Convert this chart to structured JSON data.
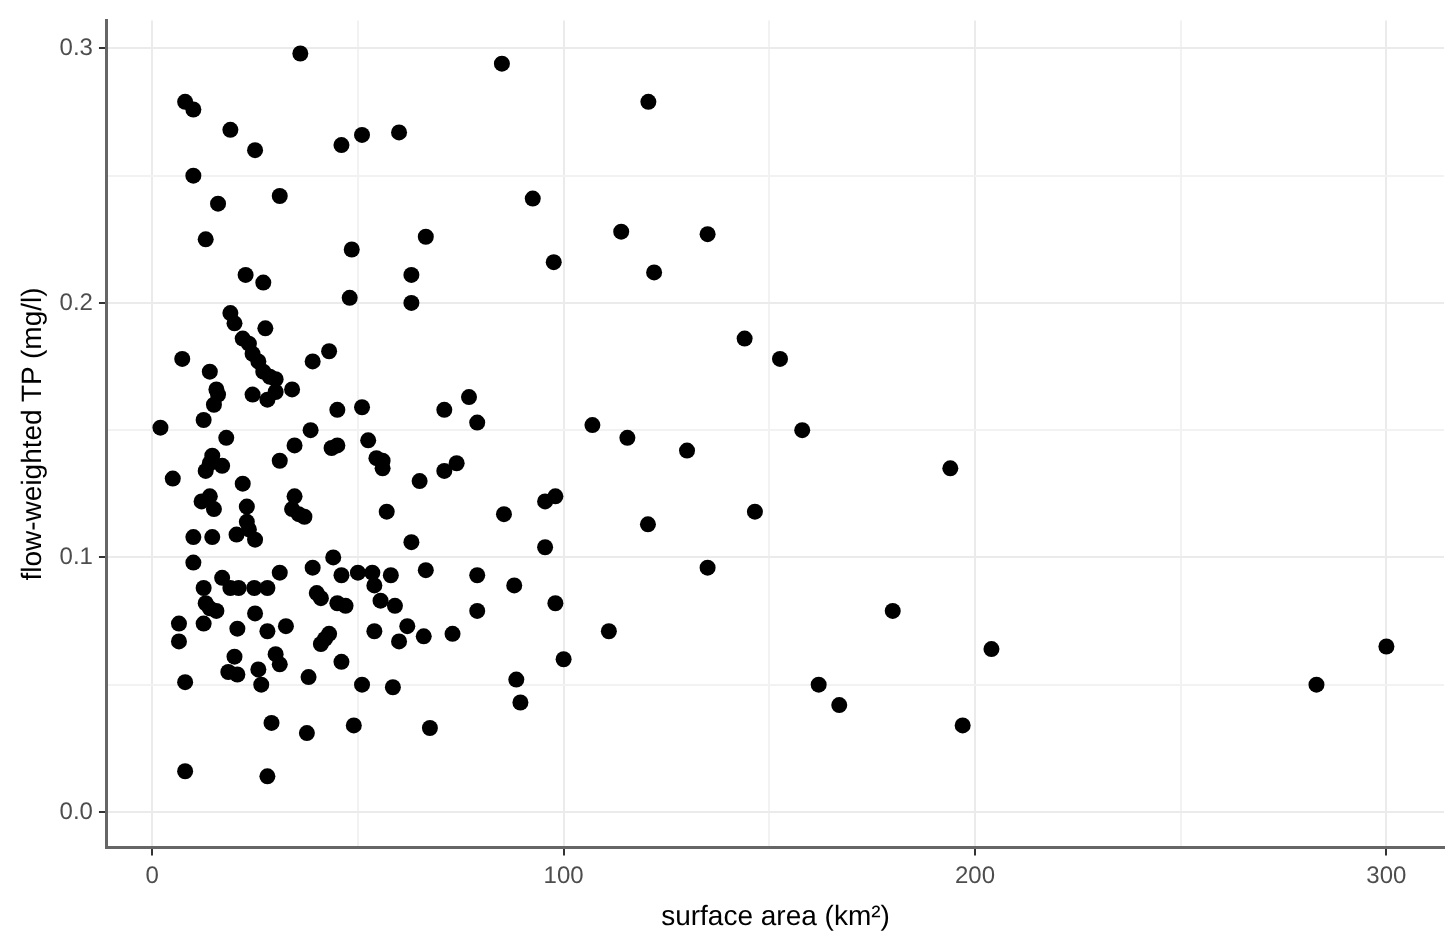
{
  "chart_data": {
    "type": "scatter",
    "xlabel": "surface area (km²)",
    "ylabel": "flow-weighted TP (mg/l)",
    "xlim": [
      -11,
      314
    ],
    "ylim": [
      -0.014,
      0.311
    ],
    "xticks": [
      0,
      {
        "value": 50,
        "label": null
      },
      100,
      {
        "value": 150,
        "label": null
      },
      200,
      {
        "value": 250,
        "label": null
      },
      300
    ],
    "yticks": [
      {
        "value": 0,
        "label": "0.0"
      },
      {
        "value": 0.05,
        "label": null
      },
      0.1,
      {
        "value": 0.15,
        "label": null
      },
      0.2,
      {
        "value": 0.25,
        "label": null
      },
      0.3
    ],
    "grid": true,
    "marker": "circle",
    "legend": false,
    "series": [
      {
        "color": "#000000",
        "x": [
          300,
          283,
          204,
          197,
          194,
          180,
          167,
          162,
          158,
          152.6,
          144,
          146.5,
          135,
          135,
          130,
          85,
          120.6,
          51,
          60,
          92.5,
          48.5,
          66.5,
          114,
          97.6,
          122,
          63,
          48,
          63,
          51,
          71,
          77,
          79,
          107,
          115.5,
          52.5,
          54.5,
          56,
          56,
          65,
          71,
          74,
          95.5,
          98,
          85.5,
          120.5,
          57,
          63,
          95.5,
          50,
          53.5,
          58,
          66.5,
          79,
          54,
          88,
          55.5,
          59,
          79,
          98,
          62,
          54,
          60,
          66,
          73,
          111,
          100,
          51,
          58.5,
          88.5,
          89.5,
          49,
          67.5,
          36,
          8,
          10,
          19,
          25,
          46,
          10,
          16,
          31,
          13,
          22.7,
          27,
          19,
          20,
          27.5,
          22,
          23.5,
          7.3,
          24.4,
          25.8,
          39,
          43,
          14,
          27,
          28.6,
          30,
          15.6,
          16,
          30,
          24.4,
          34,
          28,
          15,
          45,
          12.5,
          2,
          18,
          38.5,
          34.6,
          45,
          43.6,
          14.6,
          14,
          17,
          13,
          5,
          31,
          22,
          34.6,
          12,
          14,
          15,
          23,
          34,
          35.6,
          37,
          23,
          10,
          14.6,
          20.5,
          23.5,
          25,
          10,
          17,
          31,
          39,
          44,
          46,
          12.5,
          19,
          21,
          24.8,
          28,
          40,
          41,
          45,
          47,
          13,
          14,
          15.6,
          6.5,
          6.5,
          12.5,
          20.7,
          25,
          28,
          32.5,
          30,
          31,
          20,
          18.5,
          20.7,
          25.8,
          26.5,
          43,
          42,
          41,
          46,
          38,
          8,
          29,
          37.6,
          8,
          28
        ],
        "values": [
          0.065,
          0.05,
          0.064,
          0.034,
          0.135,
          0.079,
          0.042,
          0.05,
          0.15,
          0.178,
          0.186,
          0.118,
          0.096,
          0.227,
          0.142,
          0.294,
          0.279,
          0.266,
          0.267,
          0.241,
          0.221,
          0.226,
          0.228,
          0.216,
          0.212,
          0.211,
          0.202,
          0.2,
          0.159,
          0.158,
          0.163,
          0.153,
          0.152,
          0.147,
          0.146,
          0.139,
          0.138,
          0.135,
          0.13,
          0.134,
          0.137,
          0.122,
          0.124,
          0.117,
          0.113,
          0.118,
          0.106,
          0.104,
          0.094,
          0.094,
          0.093,
          0.095,
          0.093,
          0.089,
          0.089,
          0.083,
          0.081,
          0.079,
          0.082,
          0.073,
          0.071,
          0.067,
          0.069,
          0.07,
          0.071,
          0.06,
          0.05,
          0.049,
          0.052,
          0.043,
          0.034,
          0.033,
          0.298,
          0.279,
          0.276,
          0.268,
          0.26,
          0.262,
          0.25,
          0.239,
          0.242,
          0.225,
          0.211,
          0.208,
          0.196,
          0.192,
          0.19,
          0.186,
          0.184,
          0.178,
          0.18,
          0.177,
          0.177,
          0.181,
          0.173,
          0.173,
          0.171,
          0.17,
          0.166,
          0.164,
          0.165,
          0.164,
          0.166,
          0.162,
          0.16,
          0.158,
          0.154,
          0.151,
          0.147,
          0.15,
          0.144,
          0.144,
          0.143,
          0.14,
          0.137,
          0.136,
          0.134,
          0.131,
          0.138,
          0.129,
          0.124,
          0.122,
          0.124,
          0.119,
          0.12,
          0.119,
          0.117,
          0.116,
          0.114,
          0.108,
          0.108,
          0.109,
          0.111,
          0.107,
          0.098,
          0.092,
          0.094,
          0.096,
          0.1,
          0.093,
          0.088,
          0.088,
          0.088,
          0.088,
          0.088,
          0.086,
          0.084,
          0.082,
          0.081,
          0.082,
          0.08,
          0.079,
          0.074,
          0.067,
          0.074,
          0.072,
          0.078,
          0.071,
          0.073,
          0.062,
          0.058,
          0.061,
          0.055,
          0.054,
          0.056,
          0.05,
          0.07,
          0.068,
          0.066,
          0.059,
          0.053,
          0.051,
          0.035,
          0.031,
          0.016,
          0.014
        ]
      }
    ]
  }
}
